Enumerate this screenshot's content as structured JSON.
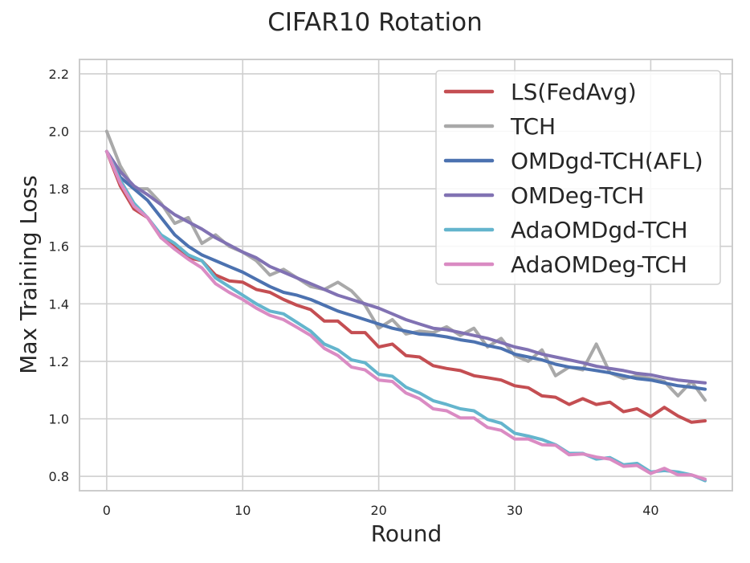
{
  "chart_data": {
    "type": "line",
    "title": "CIFAR10 Rotation",
    "xlabel": "Round",
    "ylabel": "Max Training Loss",
    "xlim": [
      -2,
      46
    ],
    "ylim": [
      0.75,
      2.25
    ],
    "xticks": [
      0,
      10,
      20,
      30,
      40
    ],
    "yticks": [
      0.8,
      1.0,
      1.2,
      1.4,
      1.6,
      1.8,
      2.0,
      2.2
    ],
    "xtick_labels": [
      "0",
      "10",
      "20",
      "30",
      "40"
    ],
    "ytick_labels": [
      "0.8",
      "1.0",
      "1.2",
      "1.4",
      "1.6",
      "1.8",
      "2.0",
      "2.2"
    ],
    "grid": true,
    "legend_position": "top-right",
    "x": [
      0,
      1,
      2,
      3,
      4,
      5,
      6,
      7,
      8,
      9,
      10,
      11,
      12,
      13,
      14,
      15,
      16,
      17,
      18,
      19,
      20,
      21,
      22,
      23,
      24,
      25,
      26,
      27,
      28,
      29,
      30,
      31,
      32,
      33,
      34,
      35,
      36,
      37,
      38,
      39,
      40,
      41,
      42,
      43,
      44
    ],
    "series": [
      {
        "name": "LS(FedAvg)",
        "color": "#c44e52",
        "values": [
          1.93,
          1.81,
          1.73,
          1.7,
          1.63,
          1.6,
          1.56,
          1.55,
          1.5,
          1.48,
          1.475,
          1.45,
          1.44,
          1.415,
          1.395,
          1.38,
          1.34,
          1.34,
          1.3,
          1.3,
          1.25,
          1.26,
          1.22,
          1.215,
          1.185,
          1.175,
          1.168,
          1.15,
          1.143,
          1.135,
          1.115,
          1.108,
          1.08,
          1.075,
          1.05,
          1.07,
          1.05,
          1.058,
          1.025,
          1.035,
          1.008,
          1.04,
          1.01,
          0.988,
          0.993
        ]
      },
      {
        "name": "TCH",
        "color": "#a9a9a9",
        "values": [
          2.0,
          1.88,
          1.8,
          1.8,
          1.75,
          1.68,
          1.7,
          1.61,
          1.64,
          1.6,
          1.58,
          1.55,
          1.5,
          1.52,
          1.49,
          1.46,
          1.45,
          1.475,
          1.445,
          1.395,
          1.315,
          1.345,
          1.295,
          1.305,
          1.3,
          1.32,
          1.29,
          1.315,
          1.25,
          1.28,
          1.22,
          1.2,
          1.24,
          1.15,
          1.18,
          1.17,
          1.26,
          1.16,
          1.14,
          1.15,
          1.14,
          1.13,
          1.08,
          1.13,
          1.065
        ]
      },
      {
        "name": "OMDgd-TCH(AFL)",
        "color": "#4c72b0",
        "values": [
          1.93,
          1.84,
          1.8,
          1.76,
          1.7,
          1.64,
          1.6,
          1.57,
          1.55,
          1.53,
          1.51,
          1.485,
          1.46,
          1.44,
          1.43,
          1.415,
          1.395,
          1.375,
          1.36,
          1.345,
          1.33,
          1.315,
          1.305,
          1.295,
          1.292,
          1.285,
          1.275,
          1.268,
          1.255,
          1.245,
          1.225,
          1.215,
          1.205,
          1.19,
          1.18,
          1.175,
          1.168,
          1.16,
          1.15,
          1.14,
          1.135,
          1.125,
          1.115,
          1.11,
          1.103
        ]
      },
      {
        "name": "OMDeg-TCH",
        "color": "#8172b3",
        "values": [
          1.93,
          1.86,
          1.81,
          1.78,
          1.745,
          1.71,
          1.685,
          1.66,
          1.63,
          1.605,
          1.58,
          1.56,
          1.53,
          1.51,
          1.49,
          1.47,
          1.45,
          1.43,
          1.415,
          1.4,
          1.385,
          1.365,
          1.345,
          1.33,
          1.315,
          1.31,
          1.3,
          1.29,
          1.28,
          1.265,
          1.25,
          1.24,
          1.225,
          1.215,
          1.205,
          1.195,
          1.183,
          1.175,
          1.168,
          1.158,
          1.153,
          1.143,
          1.135,
          1.13,
          1.125
        ]
      },
      {
        "name": "AdaOMDgd-TCH",
        "color": "#64b5cd",
        "values": [
          1.93,
          1.83,
          1.75,
          1.7,
          1.64,
          1.61,
          1.57,
          1.55,
          1.49,
          1.46,
          1.43,
          1.4,
          1.375,
          1.365,
          1.335,
          1.305,
          1.26,
          1.24,
          1.205,
          1.195,
          1.155,
          1.148,
          1.11,
          1.09,
          1.063,
          1.05,
          1.035,
          1.028,
          0.998,
          0.985,
          0.95,
          0.94,
          0.928,
          0.91,
          0.88,
          0.88,
          0.86,
          0.865,
          0.84,
          0.845,
          0.815,
          0.82,
          0.815,
          0.805,
          0.785
        ]
      },
      {
        "name": "AdaOMDeg-TCH",
        "color": "#da8bc3",
        "values": [
          1.93,
          1.82,
          1.74,
          1.7,
          1.63,
          1.59,
          1.555,
          1.525,
          1.47,
          1.44,
          1.415,
          1.385,
          1.36,
          1.345,
          1.318,
          1.29,
          1.245,
          1.22,
          1.18,
          1.17,
          1.135,
          1.13,
          1.09,
          1.07,
          1.035,
          1.028,
          1.003,
          1.003,
          0.97,
          0.96,
          0.93,
          0.93,
          0.91,
          0.908,
          0.875,
          0.878,
          0.867,
          0.86,
          0.835,
          0.838,
          0.81,
          0.828,
          0.805,
          0.805,
          0.79
        ]
      }
    ]
  }
}
